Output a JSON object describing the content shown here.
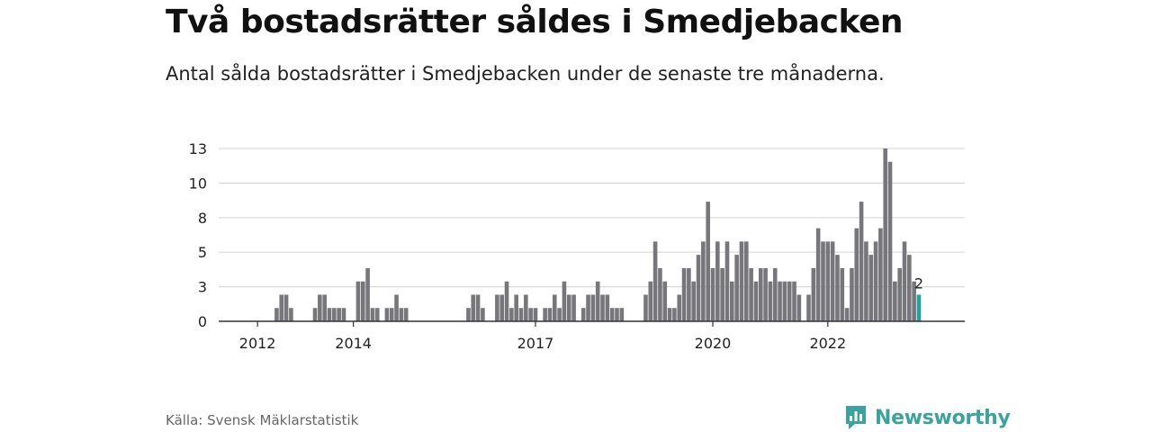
{
  "title": "Två bostadsrätter såldes i Smedjebacken",
  "subtitle": "Antal sålda bostadsrätter i Smedjebacken under de senaste tre månaderna.",
  "source": "Källa: Svensk Mäklarstatistik",
  "brand": {
    "name": "Newsworthy",
    "icon": "newsworthy-logo-icon",
    "color": "#3aa39e"
  },
  "colors": {
    "bar": "#77767b",
    "highlight": "#20a39a",
    "grid": "#d9d9d9",
    "axis": "#333333"
  },
  "chart_data": {
    "type": "bar",
    "title": "",
    "xlabel": "",
    "ylabel": "",
    "ylim": [
      0,
      13
    ],
    "y_ticks": [
      "0",
      "3",
      "5",
      "8",
      "10",
      "13"
    ],
    "y_tick_values": [
      0,
      2.6,
      5.2,
      7.8,
      10.4,
      13
    ],
    "x_ticks": [
      "2012",
      "2014",
      "2017",
      "2020",
      "2022"
    ],
    "x_tick_index": [
      5,
      25,
      63,
      100,
      124
    ],
    "highlight_label": "2",
    "values": [
      0,
      0,
      0,
      0,
      0,
      0,
      0,
      0,
      0,
      1,
      2,
      2,
      1,
      0,
      0,
      0,
      0,
      1,
      2,
      2,
      1,
      1,
      1,
      1,
      0,
      0,
      3,
      3,
      4,
      1,
      1,
      0,
      1,
      1,
      2,
      1,
      1,
      0,
      0,
      0,
      0,
      0,
      0,
      0,
      0,
      0,
      0,
      0,
      0,
      1,
      2,
      2,
      1,
      0,
      0,
      2,
      2,
      3,
      1,
      2,
      1,
      2,
      1,
      1,
      0,
      1,
      1,
      2,
      1,
      3,
      2,
      2,
      0,
      1,
      2,
      2,
      3,
      2,
      2,
      1,
      1,
      1,
      0,
      0,
      0,
      0,
      2,
      3,
      6,
      4,
      3,
      1,
      1,
      2,
      4,
      4,
      3,
      5,
      6,
      9,
      4,
      6,
      4,
      6,
      3,
      5,
      6,
      6,
      4,
      3,
      4,
      4,
      3,
      4,
      3,
      3,
      3,
      3,
      2,
      0,
      2,
      4,
      7,
      6,
      6,
      6,
      5,
      4,
      1,
      4,
      7,
      9,
      6,
      5,
      6,
      7,
      13,
      12,
      3,
      4,
      6,
      5,
      3,
      2
    ],
    "grid": true,
    "legend": "none"
  }
}
